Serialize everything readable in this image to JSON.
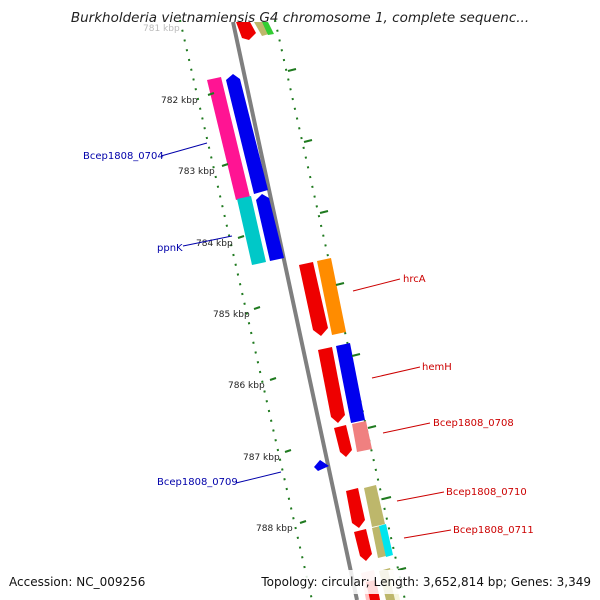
{
  "title": "Burkholderia vietnamiensis G4 chromosome 1, complete sequenc...",
  "footer": {
    "accession": "Accession: NC_009256",
    "topology": "Topology: circular; Length: 3,652,814 bp; Genes: 3,349"
  },
  "colors": {
    "backbone": "#7f7f7f",
    "tick_marks": "#1f7a1f",
    "plus_strand_label": "#0000aa",
    "minus_strand_label": "#cc0000"
  },
  "ticks": [
    {
      "label": "781 kbp"
    },
    {
      "label": "782 kbp"
    },
    {
      "label": "783 kbp"
    },
    {
      "label": "784 kbp"
    },
    {
      "label": "785 kbp"
    },
    {
      "label": "786 kbp"
    },
    {
      "label": "787 kbp"
    },
    {
      "label": "788 kbp"
    }
  ],
  "gene_labels": [
    {
      "text": "Bcep1808_0704",
      "strand": "plus"
    },
    {
      "text": "ppnK",
      "strand": "plus"
    },
    {
      "text": "hrcA",
      "strand": "minus"
    },
    {
      "text": "hemH",
      "strand": "minus"
    },
    {
      "text": "Bcep1808_0708",
      "strand": "minus"
    },
    {
      "text": "Bcep1808_0709",
      "strand": "plus"
    },
    {
      "text": "Bcep1808_0710",
      "strand": "minus"
    },
    {
      "text": "Bcep1808_0711",
      "strand": "minus"
    }
  ],
  "feature_colors": {
    "pink": "#ff1493",
    "blue": "#0000ee",
    "cyan": "#00c8c8",
    "red": "#ee0000",
    "orange": "#ff8c00",
    "salmon": "#f08080",
    "khaki": "#bdb76b",
    "aqua": "#00e5ee",
    "green": "#32cd32",
    "light_pink": "#ffc0c0"
  }
}
